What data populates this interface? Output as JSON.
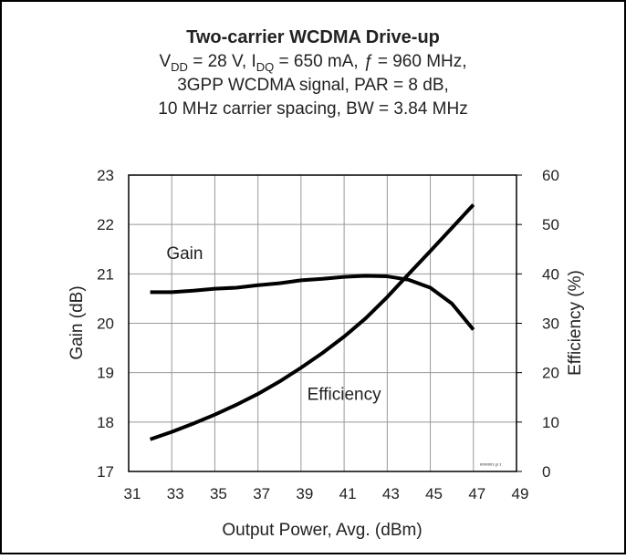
{
  "chart_data": {
    "type": "line",
    "title": "Two-carrier WCDMA Drive-up",
    "subtitle": [
      [
        {
          "text": "V"
        },
        {
          "text": "DD",
          "sub": true
        },
        {
          "text": " = 28 V, I"
        },
        {
          "text": "DQ",
          "sub": true
        },
        {
          "text": " = 650 mA, "
        },
        {
          "text": "ƒ",
          "italic": true
        },
        {
          "text": " = 960 MHz,"
        }
      ],
      "3GPP WCDMA signal, PAR = 8 dB,",
      "10 MHz carrier spacing, BW = 3.84 MHz"
    ],
    "xlabel": "Output Power, Avg. (dBm)",
    "ylabel": "Gain (dB)",
    "y2label": "Efficiency (%)",
    "x": [
      32,
      33,
      34,
      35,
      36,
      37,
      38,
      39,
      40,
      41,
      42,
      43,
      44,
      45,
      46,
      47
    ],
    "series": [
      {
        "name": "Gain",
        "color": "#000000",
        "axis": "y",
        "values": [
          20.63,
          20.63,
          20.66,
          20.7,
          20.72,
          20.77,
          20.81,
          20.87,
          20.9,
          20.94,
          20.96,
          20.95,
          20.88,
          20.72,
          20.4,
          19.87
        ]
      },
      {
        "name": "Efficiency",
        "color": "#000000",
        "axis": "y2",
        "values": [
          6.5,
          8,
          9.7,
          11.5,
          13.5,
          15.7,
          18.2,
          21,
          24,
          27.3,
          31,
          35.3,
          40,
          44.6,
          49.3,
          54
        ]
      }
    ],
    "annotations": [
      {
        "text": "Gain",
        "x": 33.6,
        "y": 21.3
      },
      {
        "text": "Efficiency",
        "x": 41,
        "y": 18.45
      },
      {
        "text": "b090901 gr 1",
        "x": 47.8,
        "y": 17.12
      }
    ],
    "xlim": [
      31,
      49
    ],
    "xticks": [
      31,
      33,
      35,
      37,
      39,
      41,
      43,
      45,
      47,
      49
    ],
    "ylim": [
      17,
      23
    ],
    "yticks": [
      17,
      18,
      19,
      20,
      21,
      22,
      23
    ],
    "y2lim": [
      0,
      60
    ],
    "y2ticks": [
      0,
      10,
      20,
      30,
      40,
      50,
      60
    ],
    "grid": true
  }
}
